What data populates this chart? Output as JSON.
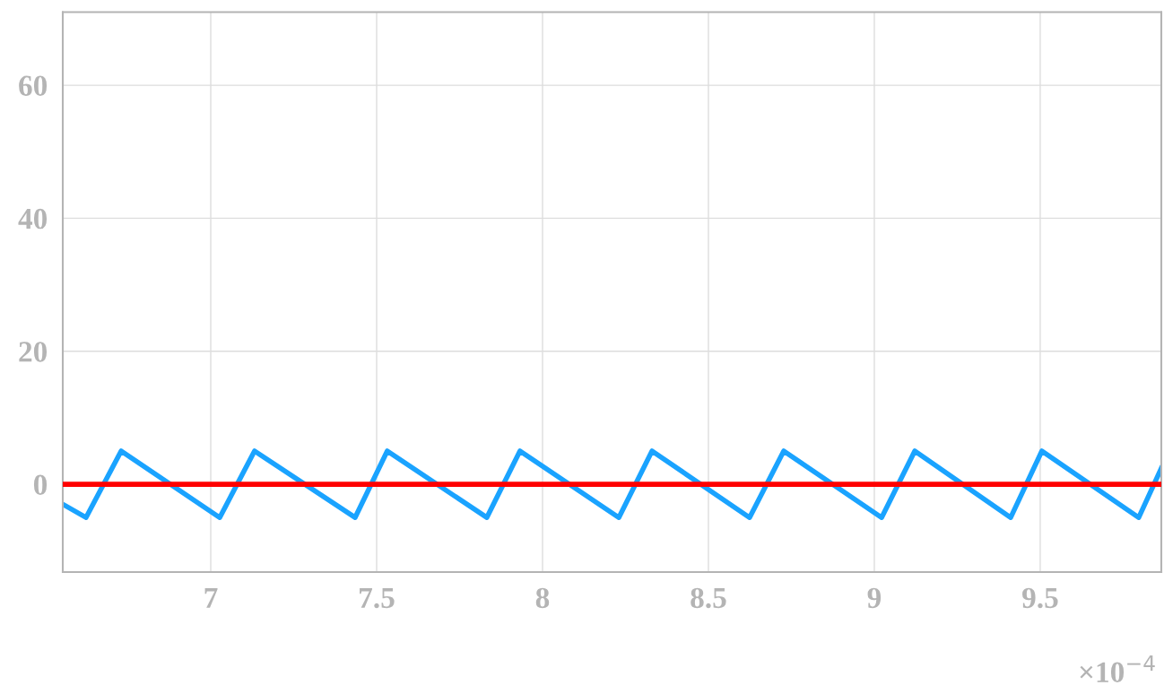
{
  "chart_data": {
    "type": "line",
    "x": [
      6.554,
      6.624,
      6.73,
      7.027,
      7.132,
      7.435,
      7.532,
      7.832,
      7.932,
      8.23,
      8.33,
      8.624,
      8.727,
      9.022,
      9.122,
      9.411,
      9.505,
      9.797,
      9.865
    ],
    "series": [
      {
        "color": "#1aa3ff",
        "values": [
          -3,
          -5,
          5,
          -5,
          5,
          -5,
          5,
          -5,
          5,
          -5,
          5,
          -5,
          5,
          -5,
          5,
          -5,
          5,
          -5,
          2.4
        ]
      }
    ],
    "ref_lines": [
      {
        "axis": "y",
        "value": 0,
        "color": "#ff0000"
      }
    ],
    "xlim": [
      6.554,
      9.865
    ],
    "xticks": [
      7,
      7.5,
      8,
      8.5,
      9,
      9.5
    ],
    "ylim": [
      -13.2,
      71
    ],
    "yticks": [
      0,
      20,
      40,
      60
    ],
    "grid": true,
    "marker": "none",
    "line_style": "solid",
    "annotations": [
      "×10$^{−4}$"
    ]
  }
}
